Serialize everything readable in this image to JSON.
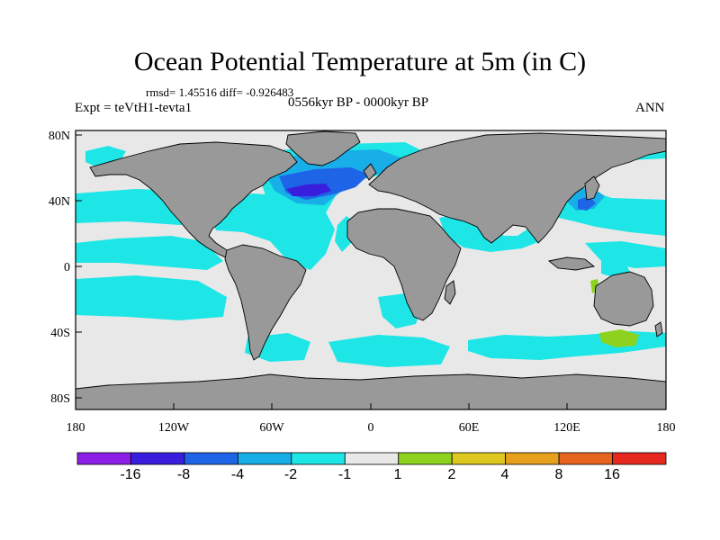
{
  "title": "Ocean Potential Temperature at 5m (in C)",
  "stats": "rmsd= 1.45516 diff= -0.926483",
  "period": "0556kyr BP - 0000kyr BP",
  "experiment": "Expt = teVtH1-tevta1",
  "season": "ANN",
  "axes": {
    "lon_ticks": [
      "180",
      "120W",
      "60W",
      "0",
      "60E",
      "120E",
      "180"
    ],
    "lat_ticks": [
      "80N",
      "40N",
      "0",
      "40S",
      "80S"
    ]
  },
  "colorbar": {
    "labels": [
      "-16",
      "-8",
      "-4",
      "-2",
      "-1",
      "1",
      "2",
      "4",
      "8",
      "16"
    ],
    "colors": [
      "#8c1ee6",
      "#3a1ede",
      "#1e64e6",
      "#18aee8",
      "#1ee6e6",
      "#e8e8e8",
      "#8cd21e",
      "#dcc81e",
      "#e6a01e",
      "#e6641e",
      "#e6281e"
    ]
  },
  "map_colors": {
    "land": "#999999",
    "neutral": "#e8e8e8",
    "cool_1": "#1ee6e6",
    "cool_2": "#18aee8",
    "cool_3": "#1e64e6",
    "cool_4": "#3a1ede",
    "warm_1": "#8cd21e"
  }
}
